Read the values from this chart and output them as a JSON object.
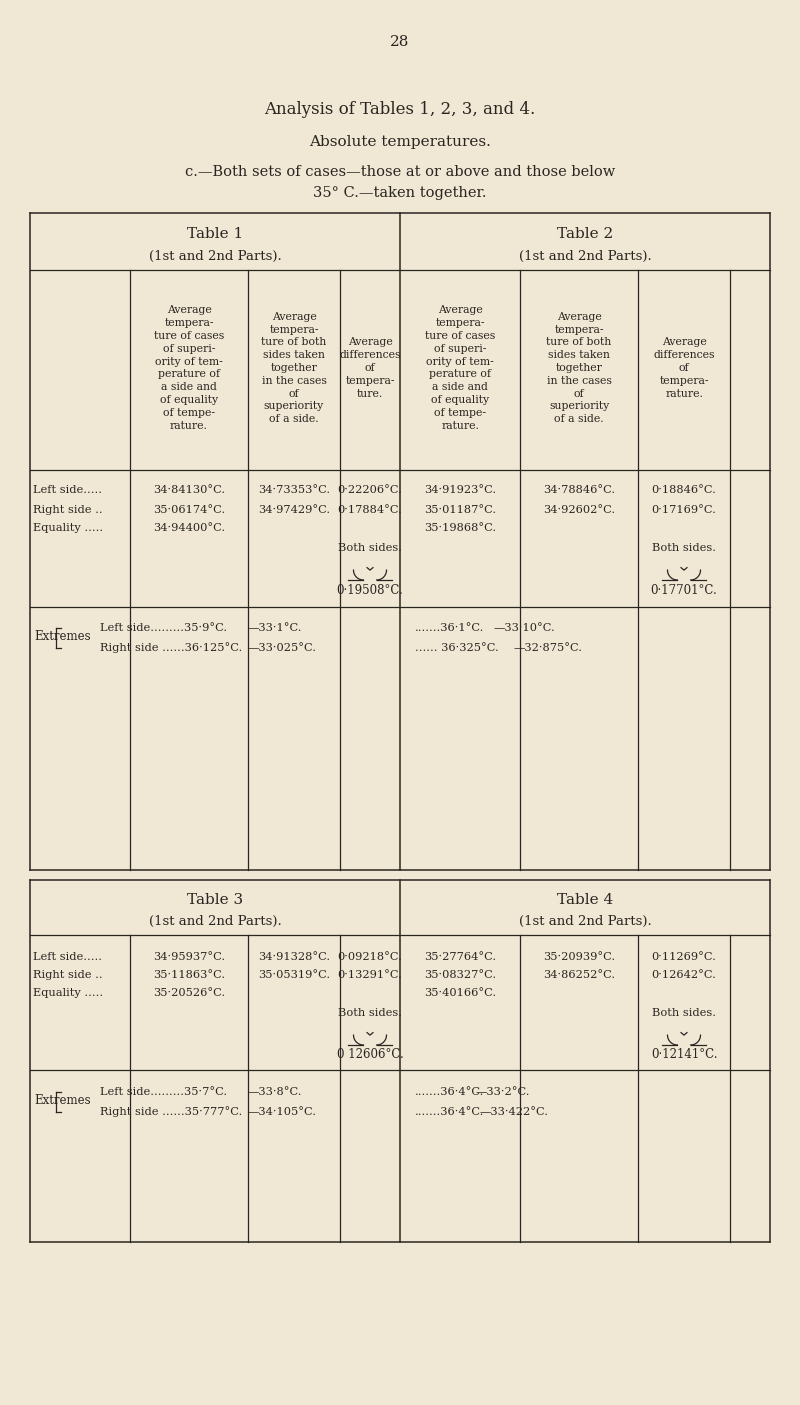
{
  "bg_color": "#f0e8d5",
  "text_color": "#2a2520",
  "page_number": "28",
  "title1": "Analysis of Tables 1, 2, 3, and 4.",
  "title2": "Absolute temperatures.",
  "title3": "c.—Both sets of cases—those at or above and those below",
  "title3b": "35° C.—taken together.",
  "table1_header": "Table 1",
  "table1_subheader": "(1st and 2nd Parts).",
  "table2_header": "Table 2",
  "table2_subheader": "(1st and 2nd Parts).",
  "table3_header": "Table 3",
  "table3_subheader": "(1st and 2nd Parts).",
  "table4_header": "Table 4",
  "table4_subheader": "(1st and 2nd Parts).",
  "ch1": "Average\ntempera-\nture of cases\nof superi-\nority of tem-\nperature of\na side and\nof equality\nof tempe-\nrature.",
  "ch2": "Average\ntempera-\nture of both\nsides taken\ntogether\nin the cases\nof\nsuperiority\nof a side.",
  "ch3": "Average\ndifferences\nof\ntempera-\nture.",
  "ch4": "Average\ntempera-\nture of cases\nof superi-\nority of tem-\nperature of\na side and\nof equality\nof tempe-\nrature.",
  "ch5": "Average\ntempera-\nture of both\nsides taken\ntogether\nin the cases\nof\nsuperiority\nof a side.",
  "ch6": "Average\ndifferences\nof\ntempera-\nrature.",
  "t1_left_c1": "34·84130°C.",
  "t1_left_c2": "34·73353°C.",
  "t1_left_c3": "0·22206°C.",
  "t1_right_c1": "35·06174°C.",
  "t1_right_c2": "34·97429°C.",
  "t1_right_c3": "0·17884°C.",
  "t1_eq_c1": "34·94400°C.",
  "t2_left_c1": "34·91923°C.",
  "t2_left_c2": "34·78846°C.",
  "t2_left_c3": "0·18846°C.",
  "t2_right_c1": "35·01187°C.",
  "t2_right_c2": "34·92602°C.",
  "t2_right_c3": "0·17169°C.",
  "t2_eq_c1": "35·19868°C.",
  "t1_both_label": "Both sides.",
  "t1_both_val": "0·19508°C.",
  "t2_both_label": "Both sides.",
  "t2_both_val": "0·17701°C.",
  "t1_ext_left1": "Left side.........35·9°C.",
  "t1_ext_left2": "—33·1°C.",
  "t1_ext_right1": "Right side ......36·125°C.",
  "t1_ext_right2": "—33·025°C.",
  "t2_ext_left1": ".......36·1°C.",
  "t2_ext_left2": "—33·10°C.",
  "t2_ext_right1": "...... 36·325°C.",
  "t2_ext_right2": "—32·875°C.",
  "t3_left_c1": "34·95937°C.",
  "t3_left_c2": "34·91328°C.",
  "t3_left_c3": "0·09218°C.",
  "t3_right_c1": "35·11863°C.",
  "t3_right_c2": "35·05319°C.",
  "t3_right_c3": "0·13291°C.",
  "t3_eq_c1": "35·20526°C.",
  "t4_left_c1": "35·27764°C.",
  "t4_left_c2": "35·20939°C.",
  "t4_left_c3": "0·11269°C.",
  "t4_right_c1": "35·08327°C.",
  "t4_right_c2": "34·86252°C.",
  "t4_right_c3": "0·12642°C.",
  "t4_eq_c1": "35·40166°C.",
  "t3_both_label": "Both sides.",
  "t3_both_val": "0 12606°C.",
  "t4_both_label": "Both sides.",
  "t4_both_val": "0·12141°C.",
  "t3_ext_left1": "Left side.........35·7°C.",
  "t3_ext_left2": "—33·8°C.",
  "t3_ext_right1": "Right side ......35·777°C.",
  "t3_ext_right2": "—34·105°C.",
  "t4_ext_left1": ".......36·4°C.",
  "t4_ext_left2": "—33·2°C.",
  "t4_ext_right1": ".......36·4°C.",
  "t4_ext_right2": "—33·422°C."
}
